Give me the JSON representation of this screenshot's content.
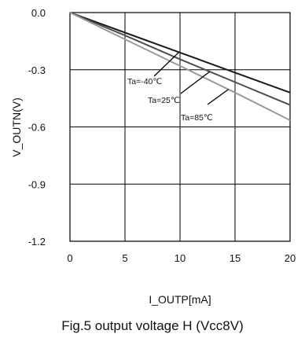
{
  "chart_data": {
    "type": "line",
    "title": "",
    "xlabel": "I_OUTP[mA]",
    "ylabel": "V_OUTN(V)",
    "xlim": [
      0,
      20
    ],
    "ylim": [
      -1.2,
      0.0
    ],
    "x_ticks": [
      0,
      5,
      10,
      15,
      20
    ],
    "y_ticks": [
      0.0,
      -0.3,
      -0.6,
      -0.9,
      -1.2
    ],
    "x_tick_labels": [
      "0",
      "5",
      "10",
      "15",
      "20"
    ],
    "y_tick_labels": [
      "0.0",
      "-0.3",
      "-0.6",
      "-0.9",
      "-1.2"
    ],
    "grid": true,
    "legend": "none",
    "series": [
      {
        "name": "Ta=-40℃",
        "color": "#1a1a1a",
        "x": [
          0,
          5,
          10,
          15,
          20
        ],
        "y": [
          0.0,
          -0.105,
          -0.21,
          -0.315,
          -0.42
        ]
      },
      {
        "name": "Ta=25℃",
        "color": "#4d4d4d",
        "x": [
          0,
          5,
          10,
          15,
          20
        ],
        "y": [
          0.0,
          -0.12,
          -0.245,
          -0.365,
          -0.485
        ]
      },
      {
        "name": "Ta=85℃",
        "color": "#9a9a9a",
        "x": [
          0,
          5,
          10,
          15,
          20
        ],
        "y": [
          0.0,
          -0.14,
          -0.28,
          -0.42,
          -0.565
        ]
      }
    ],
    "annotations": [
      {
        "text": "Ta=-40℃",
        "series": 0
      },
      {
        "text": "Ta=25℃",
        "series": 1
      },
      {
        "text": "Ta=85℃",
        "series": 2
      }
    ]
  },
  "caption": "Fig.5 output voltage H (Vcc8V)"
}
